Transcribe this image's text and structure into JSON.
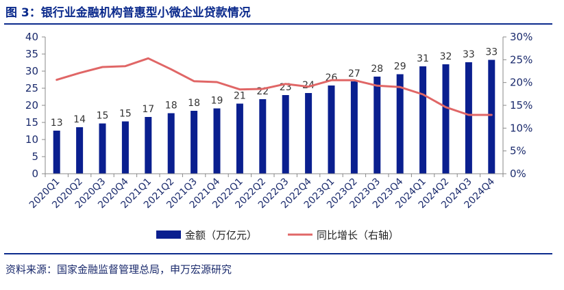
{
  "title": "图 3：银行业金融机构普惠型小微企业贷款情况",
  "source": "资料来源：国家金融监督管理总局，申万宏源研究",
  "colors": {
    "bar": "#0a1f8f",
    "line": "#e06666",
    "axis": "#1a2a6c",
    "title": "#0b2a8c"
  },
  "chart_data": {
    "type": "bar",
    "categories": [
      "2020Q1",
      "2020Q2",
      "2020Q3",
      "2020Q4",
      "2021Q1",
      "2021Q2",
      "2021Q3",
      "2021Q4",
      "2022Q1",
      "2022Q2",
      "2022Q3",
      "2022Q4",
      "2023Q1",
      "2023Q2",
      "2023Q3",
      "2023Q4",
      "2024Q1",
      "2024Q2",
      "2024Q3",
      "2024Q4"
    ],
    "series": [
      {
        "name": "金额（万亿元）",
        "type": "bar",
        "axis": "left",
        "values": [
          12.6,
          13.6,
          14.7,
          15.3,
          16.6,
          17.7,
          18.4,
          19.1,
          20.5,
          21.8,
          23.0,
          23.6,
          25.8,
          27.0,
          28.4,
          29.1,
          31.4,
          32.0,
          32.6,
          33.3
        ],
        "labels": [
          "13",
          "14",
          "15",
          "15",
          "17",
          "18",
          "18",
          "19",
          "21",
          "22",
          "23",
          "24",
          "26",
          "27",
          "28",
          "29",
          "31",
          "32",
          "33",
          "33"
        ]
      },
      {
        "name": "同比增长（右轴）",
        "type": "line",
        "axis": "right",
        "values": [
          20.6,
          22.1,
          23.4,
          23.6,
          25.3,
          22.9,
          20.3,
          20.1,
          18.5,
          18.6,
          19.7,
          19.1,
          20.5,
          20.5,
          19.3,
          19.0,
          17.4,
          14.6,
          12.9,
          12.9
        ]
      }
    ],
    "y_left": {
      "min": 0,
      "max": 40,
      "step": 5,
      "ticks": [
        "0",
        "5",
        "10",
        "15",
        "20",
        "25",
        "30",
        "35",
        "40"
      ]
    },
    "y_right": {
      "min": 0,
      "max": 30,
      "step": 5,
      "ticks": [
        "0%",
        "5%",
        "10%",
        "15%",
        "20%",
        "25%",
        "30%"
      ]
    },
    "grid": false,
    "legend_position": "bottom"
  }
}
